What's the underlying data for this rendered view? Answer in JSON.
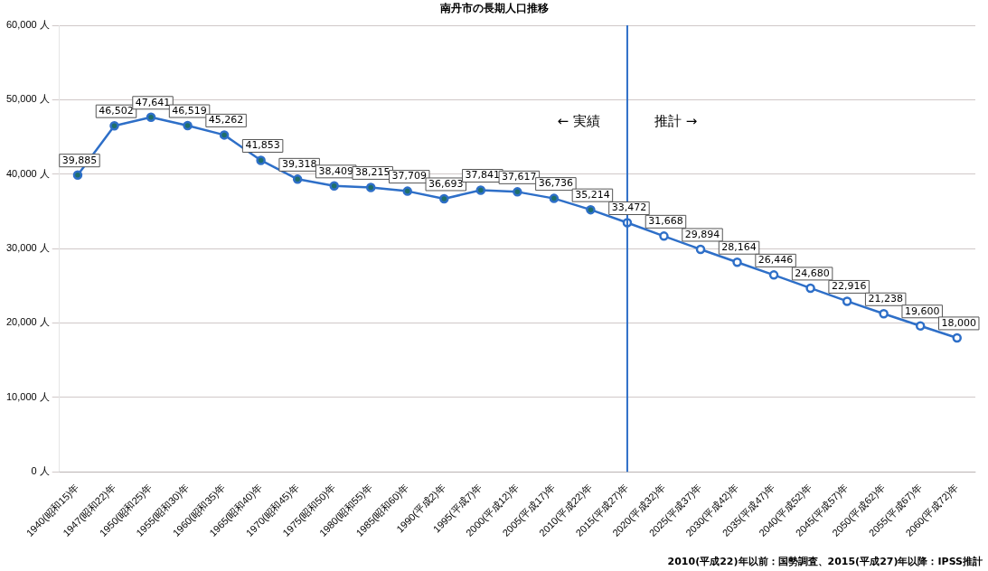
{
  "chart_data": {
    "type": "line",
    "title": "南丹市の長期人口推移",
    "categories": [
      "1940(昭和15)年",
      "1947(昭和22)年",
      "1950(昭和25)年",
      "1955(昭和30)年",
      "1960(昭和35)年",
      "1965(昭和40)年",
      "1970(昭和45)年",
      "1975(昭和50)年",
      "1980(昭和55)年",
      "1985(昭和60)年",
      "1990(平成2)年",
      "1995(平成7)年",
      "2000(平成12)年",
      "2005(平成17)年",
      "2010(平成22)年",
      "2015(平成27)年",
      "2020(平成32)年",
      "2025(平成37)年",
      "2030(平成42)年",
      "2035(平成47)年",
      "2040(平成52)年",
      "2045(平成57)年",
      "2050(平成62)年",
      "2055(平成67)年",
      "2060(平成72)年"
    ],
    "series": [
      {
        "color": "#2e6fc8",
        "colors": [
          "#1f6f6a",
          "#1f6f6a",
          "#1f6f6a",
          "#1f6f6a",
          "#1f6f6a",
          "#1f6f6a",
          "#1f6f6a",
          "#1f6f6a",
          "#1f6f6a",
          "#1f6f6a",
          "#1f6f6a",
          "#1f6f6a",
          "#1f6f6a",
          "#1f6f6a",
          "#1f6f6a",
          "#ffffff",
          "#ffffff",
          "#ffffff",
          "#ffffff",
          "#ffffff",
          "#ffffff",
          "#ffffff",
          "#ffffff",
          "#ffffff",
          "#ffffff"
        ],
        "values": [
          39885,
          46502,
          47641,
          46519,
          45262,
          41853,
          39318,
          38409,
          38215,
          37709,
          36693,
          37841,
          37617,
          36736,
          35214,
          33472,
          31668,
          29894,
          28164,
          26446,
          24680,
          22916,
          21238,
          19600,
          18000
        ],
        "value_labels": [
          "39,885",
          "46,502",
          "47,641",
          "46,519",
          "45,262",
          "41,853",
          "39,318",
          "38,409",
          "38,215",
          "37,709",
          "36,693",
          "37,841",
          "37,617",
          "36,736",
          "35,214",
          "33,472",
          "31,668",
          "29,894",
          "28,164",
          "26,446",
          "24,680",
          "22,916",
          "21,238",
          "19,600",
          "18,000"
        ]
      }
    ],
    "ylim": [
      0,
      60000
    ],
    "yticks": [
      {
        "value": 0,
        "label": "0 人"
      },
      {
        "value": 10000,
        "label": "10,000 人"
      },
      {
        "value": 20000,
        "label": "20,000 人"
      },
      {
        "value": 30000,
        "label": "30,000 人"
      },
      {
        "value": 40000,
        "label": "40,000 人"
      },
      {
        "value": 50000,
        "label": "50,000 人"
      },
      {
        "value": 60000,
        "label": "60,000 人"
      }
    ],
    "grid": "y",
    "legend": false,
    "marker": "circle",
    "line_style": "solid",
    "ref_lines": [
      {
        "axis": "x",
        "value": "2015(平成27)年",
        "color": "#2e6fc8"
      }
    ],
    "annotations": [
      "← 実績",
      "推計 →",
      "2010(平成22)年以前：国勢調査、2015(平成27)年以降：IPSS推計"
    ]
  }
}
